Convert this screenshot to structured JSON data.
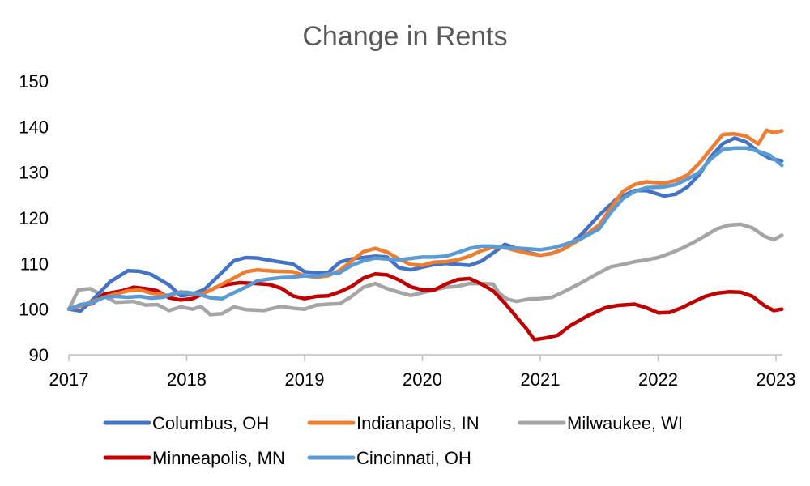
{
  "chart_data": {
    "type": "line",
    "title": "Change in Rents",
    "xlabel": "",
    "ylabel": "",
    "xlim": [
      2017,
      2023.05
    ],
    "ylim": [
      90,
      150
    ],
    "y_ticks": [
      90,
      100,
      110,
      120,
      130,
      140,
      150
    ],
    "x_ticks": [
      2017,
      2018,
      2019,
      2020,
      2021,
      2022,
      2023
    ],
    "y_tick_labels": [
      "90",
      "100",
      "110",
      "120",
      "130",
      "140",
      "150"
    ],
    "x_tick_labels": [
      "2017",
      "2018",
      "2019",
      "2020",
      "2021",
      "2022",
      "2023"
    ],
    "grid": false,
    "legend_position": "bottom",
    "series": [
      {
        "name": "Columbus, OH",
        "color": "#4472C4",
        "points": [
          [
            2017.0,
            100.0
          ],
          [
            2017.1,
            99.6
          ],
          [
            2017.2,
            102.0
          ],
          [
            2017.35,
            106.0
          ],
          [
            2017.5,
            108.4
          ],
          [
            2017.6,
            108.3
          ],
          [
            2017.7,
            107.6
          ],
          [
            2017.85,
            105.3
          ],
          [
            2017.95,
            102.9
          ],
          [
            2018.05,
            103.3
          ],
          [
            2018.15,
            104.3
          ],
          [
            2018.25,
            106.8
          ],
          [
            2018.4,
            110.6
          ],
          [
            2018.5,
            111.3
          ],
          [
            2018.6,
            111.2
          ],
          [
            2018.75,
            110.5
          ],
          [
            2018.9,
            109.9
          ],
          [
            2019.0,
            108.2
          ],
          [
            2019.1,
            108.0
          ],
          [
            2019.2,
            108.0
          ],
          [
            2019.3,
            110.3
          ],
          [
            2019.4,
            111.0
          ],
          [
            2019.5,
            111.3
          ],
          [
            2019.6,
            111.6
          ],
          [
            2019.7,
            111.4
          ],
          [
            2019.8,
            109.1
          ],
          [
            2019.9,
            108.6
          ],
          [
            2020.0,
            109.2
          ],
          [
            2020.1,
            109.8
          ],
          [
            2020.2,
            110.0
          ],
          [
            2020.3,
            109.8
          ],
          [
            2020.4,
            109.6
          ],
          [
            2020.5,
            110.5
          ],
          [
            2020.6,
            112.3
          ],
          [
            2020.7,
            114.2
          ],
          [
            2020.8,
            113.3
          ],
          [
            2020.9,
            112.4
          ],
          [
            2021.0,
            111.8
          ],
          [
            2021.1,
            112.2
          ],
          [
            2021.2,
            113.2
          ],
          [
            2021.35,
            116.4
          ],
          [
            2021.5,
            120.6
          ],
          [
            2021.65,
            124.2
          ],
          [
            2021.8,
            126.0
          ],
          [
            2021.9,
            126.0
          ],
          [
            2022.05,
            124.8
          ],
          [
            2022.15,
            125.2
          ],
          [
            2022.25,
            126.8
          ],
          [
            2022.35,
            129.5
          ],
          [
            2022.45,
            133.5
          ],
          [
            2022.55,
            136.3
          ],
          [
            2022.65,
            137.5
          ],
          [
            2022.75,
            136.6
          ],
          [
            2022.85,
            134.5
          ],
          [
            2022.95,
            133.0
          ],
          [
            2023.05,
            132.5
          ]
        ]
      },
      {
        "name": "Indianapolis, IN",
        "color": "#ED7D31",
        "points": [
          [
            2017.0,
            100.0
          ],
          [
            2017.1,
            100.7
          ],
          [
            2017.2,
            101.7
          ],
          [
            2017.35,
            103.0
          ],
          [
            2017.5,
            104.0
          ],
          [
            2017.6,
            104.2
          ],
          [
            2017.7,
            103.5
          ],
          [
            2017.85,
            103.0
          ],
          [
            2017.95,
            103.8
          ],
          [
            2018.05,
            103.4
          ],
          [
            2018.15,
            103.5
          ],
          [
            2018.25,
            104.8
          ],
          [
            2018.4,
            106.8
          ],
          [
            2018.5,
            108.2
          ],
          [
            2018.6,
            108.6
          ],
          [
            2018.75,
            108.3
          ],
          [
            2018.9,
            108.2
          ],
          [
            2019.0,
            107.3
          ],
          [
            2019.1,
            107.0
          ],
          [
            2019.2,
            107.3
          ],
          [
            2019.3,
            108.5
          ],
          [
            2019.4,
            110.6
          ],
          [
            2019.5,
            112.6
          ],
          [
            2019.6,
            113.3
          ],
          [
            2019.7,
            112.5
          ],
          [
            2019.8,
            111.0
          ],
          [
            2019.9,
            109.8
          ],
          [
            2020.0,
            109.6
          ],
          [
            2020.1,
            110.3
          ],
          [
            2020.2,
            110.4
          ],
          [
            2020.3,
            110.8
          ],
          [
            2020.4,
            111.6
          ],
          [
            2020.5,
            112.8
          ],
          [
            2020.6,
            113.6
          ],
          [
            2020.7,
            113.5
          ],
          [
            2020.8,
            112.8
          ],
          [
            2020.9,
            112.2
          ],
          [
            2021.0,
            111.8
          ],
          [
            2021.1,
            112.2
          ],
          [
            2021.2,
            113.2
          ],
          [
            2021.35,
            115.5
          ],
          [
            2021.5,
            118.5
          ],
          [
            2021.6,
            122.2
          ],
          [
            2021.7,
            125.8
          ],
          [
            2021.8,
            127.3
          ],
          [
            2021.9,
            127.9
          ],
          [
            2022.05,
            127.6
          ],
          [
            2022.15,
            128.2
          ],
          [
            2022.25,
            129.4
          ],
          [
            2022.35,
            132.0
          ],
          [
            2022.45,
            135.2
          ],
          [
            2022.55,
            138.3
          ],
          [
            2022.65,
            138.4
          ],
          [
            2022.75,
            137.9
          ],
          [
            2022.85,
            136.2
          ],
          [
            2022.92,
            139.2
          ],
          [
            2022.98,
            138.7
          ],
          [
            2023.05,
            139.1
          ]
        ]
      },
      {
        "name": "Milwaukee, WI",
        "color": "#A5A5A5",
        "points": [
          [
            2017.0,
            100.0
          ],
          [
            2017.08,
            104.2
          ],
          [
            2017.18,
            104.5
          ],
          [
            2017.3,
            102.8
          ],
          [
            2017.4,
            101.5
          ],
          [
            2017.55,
            101.7
          ],
          [
            2017.65,
            100.9
          ],
          [
            2017.75,
            101.0
          ],
          [
            2017.85,
            99.7
          ],
          [
            2017.95,
            100.5
          ],
          [
            2018.05,
            100.0
          ],
          [
            2018.12,
            100.6
          ],
          [
            2018.2,
            98.8
          ],
          [
            2018.3,
            99.0
          ],
          [
            2018.4,
            100.5
          ],
          [
            2018.5,
            99.9
          ],
          [
            2018.65,
            99.7
          ],
          [
            2018.8,
            100.6
          ],
          [
            2018.9,
            100.2
          ],
          [
            2019.0,
            100.0
          ],
          [
            2019.1,
            100.9
          ],
          [
            2019.2,
            101.1
          ],
          [
            2019.3,
            101.2
          ],
          [
            2019.4,
            102.8
          ],
          [
            2019.5,
            104.8
          ],
          [
            2019.6,
            105.6
          ],
          [
            2019.7,
            104.5
          ],
          [
            2019.8,
            103.7
          ],
          [
            2019.9,
            103.0
          ],
          [
            2020.0,
            103.6
          ],
          [
            2020.1,
            104.2
          ],
          [
            2020.2,
            104.8
          ],
          [
            2020.3,
            105.0
          ],
          [
            2020.4,
            105.6
          ],
          [
            2020.5,
            105.6
          ],
          [
            2020.6,
            105.5
          ],
          [
            2020.65,
            103.5
          ],
          [
            2020.72,
            102.2
          ],
          [
            2020.8,
            101.7
          ],
          [
            2020.9,
            102.2
          ],
          [
            2021.0,
            102.3
          ],
          [
            2021.1,
            102.6
          ],
          [
            2021.2,
            103.8
          ],
          [
            2021.35,
            105.8
          ],
          [
            2021.5,
            108.0
          ],
          [
            2021.6,
            109.3
          ],
          [
            2021.7,
            109.8
          ],
          [
            2021.8,
            110.4
          ],
          [
            2021.9,
            110.8
          ],
          [
            2022.0,
            111.3
          ],
          [
            2022.1,
            112.2
          ],
          [
            2022.2,
            113.3
          ],
          [
            2022.3,
            114.6
          ],
          [
            2022.4,
            116.1
          ],
          [
            2022.5,
            117.6
          ],
          [
            2022.6,
            118.4
          ],
          [
            2022.7,
            118.6
          ],
          [
            2022.8,
            117.8
          ],
          [
            2022.9,
            116.0
          ],
          [
            2022.98,
            115.2
          ],
          [
            2023.05,
            116.2
          ]
        ]
      },
      {
        "name": "Minneapolis, MN",
        "color": "#C00000",
        "points": [
          [
            2017.0,
            100.0
          ],
          [
            2017.1,
            100.8
          ],
          [
            2017.2,
            101.2
          ],
          [
            2017.3,
            103.3
          ],
          [
            2017.45,
            104.0
          ],
          [
            2017.55,
            104.8
          ],
          [
            2017.65,
            104.5
          ],
          [
            2017.75,
            104.0
          ],
          [
            2017.85,
            102.5
          ],
          [
            2017.95,
            102.0
          ],
          [
            2018.05,
            102.3
          ],
          [
            2018.15,
            103.5
          ],
          [
            2018.25,
            104.8
          ],
          [
            2018.35,
            105.4
          ],
          [
            2018.45,
            105.8
          ],
          [
            2018.6,
            105.6
          ],
          [
            2018.7,
            105.4
          ],
          [
            2018.8,
            104.6
          ],
          [
            2018.9,
            102.9
          ],
          [
            2019.0,
            102.3
          ],
          [
            2019.1,
            102.8
          ],
          [
            2019.2,
            102.9
          ],
          [
            2019.3,
            103.8
          ],
          [
            2019.4,
            105.0
          ],
          [
            2019.5,
            106.8
          ],
          [
            2019.6,
            107.7
          ],
          [
            2019.7,
            107.5
          ],
          [
            2019.8,
            106.4
          ],
          [
            2019.9,
            104.9
          ],
          [
            2020.0,
            104.2
          ],
          [
            2020.1,
            104.2
          ],
          [
            2020.2,
            105.5
          ],
          [
            2020.3,
            106.5
          ],
          [
            2020.4,
            106.7
          ],
          [
            2020.5,
            105.5
          ],
          [
            2020.6,
            104.0
          ],
          [
            2020.7,
            101.3
          ],
          [
            2020.8,
            98.2
          ],
          [
            2020.88,
            95.8
          ],
          [
            2020.95,
            93.3
          ],
          [
            2021.05,
            93.7
          ],
          [
            2021.15,
            94.3
          ],
          [
            2021.25,
            96.3
          ],
          [
            2021.4,
            98.5
          ],
          [
            2021.55,
            100.3
          ],
          [
            2021.65,
            100.8
          ],
          [
            2021.8,
            101.1
          ],
          [
            2021.9,
            100.3
          ],
          [
            2022.0,
            99.2
          ],
          [
            2022.1,
            99.3
          ],
          [
            2022.2,
            100.3
          ],
          [
            2022.3,
            101.6
          ],
          [
            2022.4,
            102.8
          ],
          [
            2022.5,
            103.5
          ],
          [
            2022.6,
            103.8
          ],
          [
            2022.7,
            103.7
          ],
          [
            2022.8,
            102.8
          ],
          [
            2022.9,
            100.8
          ],
          [
            2022.98,
            99.7
          ],
          [
            2023.05,
            100.0
          ]
        ]
      },
      {
        "name": "Cincinnati, OH",
        "color": "#5B9BD5",
        "points": [
          [
            2017.0,
            100.0
          ],
          [
            2017.1,
            101.0
          ],
          [
            2017.2,
            101.4
          ],
          [
            2017.3,
            102.6
          ],
          [
            2017.4,
            102.8
          ],
          [
            2017.5,
            102.6
          ],
          [
            2017.6,
            102.8
          ],
          [
            2017.7,
            102.4
          ],
          [
            2017.8,
            102.6
          ],
          [
            2017.9,
            103.5
          ],
          [
            2018.0,
            103.7
          ],
          [
            2018.1,
            103.3
          ],
          [
            2018.2,
            102.5
          ],
          [
            2018.3,
            102.3
          ],
          [
            2018.4,
            103.6
          ],
          [
            2018.5,
            104.8
          ],
          [
            2018.6,
            106.2
          ],
          [
            2018.7,
            106.6
          ],
          [
            2018.8,
            106.9
          ],
          [
            2018.9,
            107.0
          ],
          [
            2019.0,
            107.3
          ],
          [
            2019.1,
            107.2
          ],
          [
            2019.2,
            107.7
          ],
          [
            2019.3,
            108.0
          ],
          [
            2019.4,
            109.6
          ],
          [
            2019.5,
            110.6
          ],
          [
            2019.6,
            111.2
          ],
          [
            2019.7,
            111.0
          ],
          [
            2019.8,
            110.8
          ],
          [
            2019.9,
            111.1
          ],
          [
            2020.0,
            111.4
          ],
          [
            2020.1,
            111.4
          ],
          [
            2020.2,
            111.6
          ],
          [
            2020.3,
            112.4
          ],
          [
            2020.4,
            113.3
          ],
          [
            2020.5,
            113.8
          ],
          [
            2020.6,
            113.8
          ],
          [
            2020.7,
            113.4
          ],
          [
            2020.8,
            113.4
          ],
          [
            2020.9,
            113.2
          ],
          [
            2021.0,
            113.0
          ],
          [
            2021.1,
            113.4
          ],
          [
            2021.2,
            114.1
          ],
          [
            2021.35,
            115.5
          ],
          [
            2021.5,
            117.6
          ],
          [
            2021.6,
            121.2
          ],
          [
            2021.7,
            124.2
          ],
          [
            2021.8,
            125.8
          ],
          [
            2021.9,
            126.6
          ],
          [
            2022.05,
            126.8
          ],
          [
            2022.15,
            127.3
          ],
          [
            2022.25,
            128.5
          ],
          [
            2022.35,
            130.0
          ],
          [
            2022.45,
            133.0
          ],
          [
            2022.55,
            135.0
          ],
          [
            2022.65,
            135.3
          ],
          [
            2022.75,
            135.3
          ],
          [
            2022.85,
            134.6
          ],
          [
            2022.95,
            133.7
          ],
          [
            2023.05,
            131.5
          ]
        ]
      }
    ]
  }
}
